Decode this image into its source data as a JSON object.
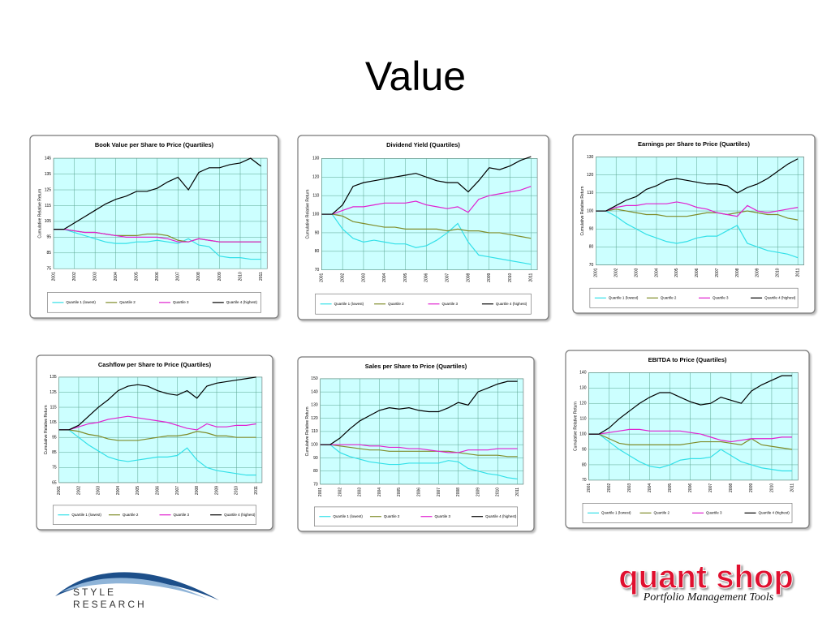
{
  "title": "Value",
  "logos": {
    "style_research": [
      "STYLE",
      "RESEARCH"
    ],
    "quant_shop": "quant shop",
    "quant_shop_tagline": "Portfolio Management Tools"
  },
  "chart_data": [
    {
      "type": "line",
      "title": "Book Value per Share to Price (Quartiles)",
      "y_label": "Cumulative Relative Return",
      "x": [
        2001,
        2001.5,
        2002,
        2002.5,
        2003,
        2003.5,
        2004,
        2004.5,
        2005,
        2005.5,
        2006,
        2006.5,
        2007,
        2007.5,
        2008,
        2008.5,
        2009,
        2009.5,
        2010,
        2010.5,
        2011
      ],
      "xlim": [
        2001,
        2011.3
      ],
      "xticks": [
        2001,
        2002,
        2003,
        2004,
        2005,
        2006,
        2007,
        2008,
        2009,
        2010,
        2011
      ],
      "ylim": [
        75,
        145
      ],
      "yticks": [
        75,
        85,
        95,
        105,
        115,
        125,
        135,
        145
      ],
      "grid": true,
      "series": [
        {
          "name": "Quartile 1 (lowest)",
          "color": "#33e0e8",
          "values": [
            100,
            100,
            98,
            96,
            94,
            92,
            91,
            91,
            92,
            92,
            93,
            92,
            91,
            94,
            90,
            89,
            83,
            82,
            82,
            81,
            81
          ]
        },
        {
          "name": "Quartile 2",
          "color": "#7f8c2a",
          "values": [
            100,
            100,
            99,
            98,
            98,
            97,
            96,
            96,
            96,
            97,
            97,
            96,
            93,
            92,
            94,
            93,
            92,
            92,
            92,
            92,
            92
          ]
        },
        {
          "name": "Quartile 3",
          "color": "#e020d0",
          "values": [
            100,
            100,
            99,
            98,
            98,
            97,
            96,
            95,
            95,
            95,
            95,
            94,
            92,
            92,
            94,
            93,
            92,
            92,
            92,
            92,
            92
          ]
        },
        {
          "name": "Quartile 4 (highest)",
          "color": "#000000",
          "values": [
            100,
            100,
            104,
            108,
            112,
            116,
            119,
            121,
            124,
            124,
            126,
            130,
            133,
            125,
            136,
            139,
            139,
            141,
            142,
            145,
            140
          ]
        }
      ]
    },
    {
      "type": "line",
      "title": "Dividend Yield (Quartiles)",
      "y_label": "Cumulative Relative Return",
      "x": [
        2001,
        2001.5,
        2002,
        2002.5,
        2003,
        2003.5,
        2004,
        2004.5,
        2005,
        2005.5,
        2006,
        2006.5,
        2007,
        2007.5,
        2008,
        2008.5,
        2009,
        2009.5,
        2010,
        2010.5,
        2011
      ],
      "xlim": [
        2001,
        2011.3
      ],
      "xticks": [
        2001,
        2002,
        2003,
        2004,
        2005,
        2006,
        2007,
        2008,
        2009,
        2010,
        2011
      ],
      "ylim": [
        70,
        130
      ],
      "yticks": [
        70,
        80,
        90,
        100,
        110,
        120,
        130
      ],
      "grid": true,
      "series": [
        {
          "name": "Quartile 1 (lowest)",
          "color": "#33e0e8",
          "values": [
            100,
            100,
            92,
            87,
            85,
            86,
            85,
            84,
            84,
            82,
            83,
            86,
            90,
            95,
            85,
            78,
            77,
            76,
            75,
            74,
            73
          ]
        },
        {
          "name": "Quartile 2",
          "color": "#7f8c2a",
          "values": [
            100,
            100,
            99,
            96,
            95,
            94,
            93,
            93,
            92,
            92,
            92,
            92,
            91,
            92,
            91,
            91,
            90,
            90,
            89,
            88,
            87
          ]
        },
        {
          "name": "Quartile 3",
          "color": "#e020d0",
          "values": [
            100,
            100,
            102,
            104,
            104,
            105,
            106,
            106,
            106,
            107,
            105,
            104,
            103,
            104,
            101,
            108,
            110,
            111,
            112,
            113,
            115
          ]
        },
        {
          "name": "Quartile 4 (highest)",
          "color": "#000000",
          "values": [
            100,
            100,
            105,
            115,
            117,
            118,
            119,
            120,
            121,
            122,
            120,
            118,
            117,
            117,
            112,
            118,
            125,
            124,
            126,
            129,
            131
          ]
        }
      ]
    },
    {
      "type": "line",
      "title": "Earnings per Share to Price (Quartiles)",
      "y_label": "Cumulative Relative Return",
      "x": [
        2001,
        2001.5,
        2002,
        2002.5,
        2003,
        2003.5,
        2004,
        2004.5,
        2005,
        2005.5,
        2006,
        2006.5,
        2007,
        2007.5,
        2008,
        2008.5,
        2009,
        2009.5,
        2010,
        2010.5,
        2011
      ],
      "xlim": [
        2001,
        2011.3
      ],
      "xticks": [
        2001,
        2002,
        2003,
        2004,
        2005,
        2006,
        2007,
        2008,
        2009,
        2010,
        2011
      ],
      "ylim": [
        70,
        130
      ],
      "yticks": [
        70,
        80,
        90,
        100,
        110,
        120,
        130
      ],
      "grid": true,
      "series": [
        {
          "name": "Quartile 1 (lowest)",
          "color": "#33e0e8",
          "values": [
            100,
            100,
            97,
            93,
            90,
            87,
            85,
            83,
            82,
            83,
            85,
            86,
            86,
            89,
            92,
            82,
            80,
            78,
            77,
            76,
            74
          ]
        },
        {
          "name": "Quartile 2",
          "color": "#7f8c2a",
          "values": [
            100,
            100,
            101,
            100,
            99,
            98,
            98,
            97,
            97,
            97,
            98,
            99,
            99,
            98,
            99,
            100,
            99,
            98,
            98,
            96,
            95
          ]
        },
        {
          "name": "Quartile 3",
          "color": "#e020d0",
          "values": [
            100,
            100,
            102,
            103,
            103,
            104,
            104,
            104,
            105,
            104,
            102,
            101,
            99,
            98,
            97,
            103,
            100,
            99,
            100,
            101,
            102
          ]
        },
        {
          "name": "Quartile 4 (highest)",
          "color": "#000000",
          "values": [
            100,
            100,
            103,
            106,
            108,
            112,
            114,
            117,
            118,
            117,
            116,
            115,
            115,
            114,
            110,
            113,
            115,
            118,
            122,
            126,
            129
          ]
        }
      ]
    },
    {
      "type": "line",
      "title": "Cashflow per Share to Price (Quartiles)",
      "y_label": "Cumulative Relative Return",
      "x": [
        2001,
        2001.5,
        2002,
        2002.5,
        2003,
        2003.5,
        2004,
        2004.5,
        2005,
        2005.5,
        2006,
        2006.5,
        2007,
        2007.5,
        2008,
        2008.5,
        2009,
        2009.5,
        2010,
        2010.5,
        2011
      ],
      "xlim": [
        2001,
        2011.3
      ],
      "xticks": [
        2001,
        2002,
        2003,
        2004,
        2005,
        2006,
        2007,
        2008,
        2009,
        2010,
        2011
      ],
      "ylim": [
        65,
        135
      ],
      "yticks": [
        65,
        75,
        85,
        95,
        105,
        115,
        125,
        135
      ],
      "grid": true,
      "series": [
        {
          "name": "Quartile 1 (lowest)",
          "color": "#33e0e8",
          "values": [
            100,
            100,
            95,
            90,
            86,
            82,
            80,
            79,
            80,
            81,
            82,
            82,
            83,
            88,
            80,
            75,
            73,
            72,
            71,
            70,
            70
          ]
        },
        {
          "name": "Quartile 2",
          "color": "#7f8c2a",
          "values": [
            100,
            100,
            99,
            97,
            96,
            94,
            93,
            93,
            93,
            94,
            95,
            96,
            96,
            97,
            99,
            98,
            96,
            96,
            95,
            95,
            95
          ]
        },
        {
          "name": "Quartile 3",
          "color": "#e020d0",
          "values": [
            100,
            100,
            102,
            104,
            105,
            107,
            108,
            109,
            108,
            107,
            106,
            105,
            103,
            101,
            100,
            104,
            102,
            102,
            103,
            103,
            104
          ]
        },
        {
          "name": "Quartile 4 (highest)",
          "color": "#000000",
          "values": [
            100,
            100,
            103,
            109,
            115,
            120,
            126,
            129,
            130,
            129,
            126,
            124,
            123,
            126,
            121,
            129,
            131,
            132,
            133,
            134,
            135
          ]
        }
      ]
    },
    {
      "type": "line",
      "title": "Sales per Share to Price (Quartiles)",
      "y_label": "Cumulative Relative Return",
      "x": [
        2001,
        2001.5,
        2002,
        2002.5,
        2003,
        2003.5,
        2004,
        2004.5,
        2005,
        2005.5,
        2006,
        2006.5,
        2007,
        2007.5,
        2008,
        2008.5,
        2009,
        2009.5,
        2010,
        2010.5,
        2011
      ],
      "xlim": [
        2001,
        2011.3
      ],
      "xticks": [
        2001,
        2002,
        2003,
        2004,
        2005,
        2006,
        2007,
        2008,
        2009,
        2010,
        2011
      ],
      "ylim": [
        70,
        150
      ],
      "yticks": [
        70,
        80,
        90,
        100,
        110,
        120,
        130,
        140,
        150
      ],
      "grid": true,
      "series": [
        {
          "name": "Quartile 1 (lowest)",
          "color": "#33e0e8",
          "values": [
            100,
            100,
            94,
            91,
            89,
            87,
            86,
            85,
            85,
            86,
            86,
            86,
            86,
            88,
            87,
            82,
            80,
            78,
            77,
            75,
            74
          ]
        },
        {
          "name": "Quartile 2",
          "color": "#7f8c2a",
          "values": [
            100,
            100,
            99,
            98,
            97,
            96,
            96,
            95,
            95,
            95,
            95,
            95,
            95,
            95,
            94,
            93,
            92,
            92,
            92,
            91,
            91
          ]
        },
        {
          "name": "Quartile 3",
          "color": "#e020d0",
          "values": [
            100,
            100,
            100,
            100,
            100,
            99,
            99,
            98,
            98,
            97,
            97,
            96,
            95,
            94,
            94,
            96,
            96,
            96,
            97,
            97,
            97
          ]
        },
        {
          "name": "Quartile 4 (highest)",
          "color": "#000000",
          "values": [
            100,
            100,
            105,
            112,
            118,
            122,
            126,
            128,
            127,
            128,
            126,
            125,
            125,
            128,
            132,
            130,
            140,
            143,
            146,
            148,
            148
          ]
        }
      ]
    },
    {
      "type": "line",
      "title": "EBITDA to Price (Quartiles)",
      "y_label": "Cumulative Relative Return",
      "x": [
        2001,
        2001.5,
        2002,
        2002.5,
        2003,
        2003.5,
        2004,
        2004.5,
        2005,
        2005.5,
        2006,
        2006.5,
        2007,
        2007.5,
        2008,
        2008.5,
        2009,
        2009.5,
        2010,
        2010.5,
        2011
      ],
      "xlim": [
        2001,
        2011.3
      ],
      "xticks": [
        2001,
        2002,
        2003,
        2004,
        2005,
        2006,
        2007,
        2008,
        2009,
        2010,
        2011
      ],
      "ylim": [
        70,
        140
      ],
      "yticks": [
        70,
        80,
        90,
        100,
        110,
        120,
        130,
        140
      ],
      "grid": true,
      "series": [
        {
          "name": "Quartile 1 (lowest)",
          "color": "#33e0e8",
          "values": [
            100,
            100,
            95,
            90,
            86,
            82,
            79,
            78,
            80,
            83,
            84,
            84,
            85,
            90,
            86,
            82,
            80,
            78,
            77,
            76,
            76
          ]
        },
        {
          "name": "Quartile 2",
          "color": "#7f8c2a",
          "values": [
            100,
            100,
            97,
            94,
            93,
            93,
            93,
            93,
            93,
            93,
            94,
            95,
            95,
            95,
            94,
            93,
            97,
            93,
            92,
            91,
            90
          ]
        },
        {
          "name": "Quartile 3",
          "color": "#e020d0",
          "values": [
            100,
            100,
            101,
            102,
            103,
            103,
            102,
            102,
            102,
            102,
            101,
            100,
            98,
            96,
            95,
            96,
            97,
            97,
            97,
            98,
            98
          ]
        },
        {
          "name": "Quartile 4 (highest)",
          "color": "#000000",
          "values": [
            100,
            100,
            104,
            110,
            115,
            120,
            124,
            127,
            127,
            124,
            121,
            119,
            120,
            124,
            122,
            120,
            128,
            132,
            135,
            138,
            138
          ]
        }
      ]
    }
  ]
}
